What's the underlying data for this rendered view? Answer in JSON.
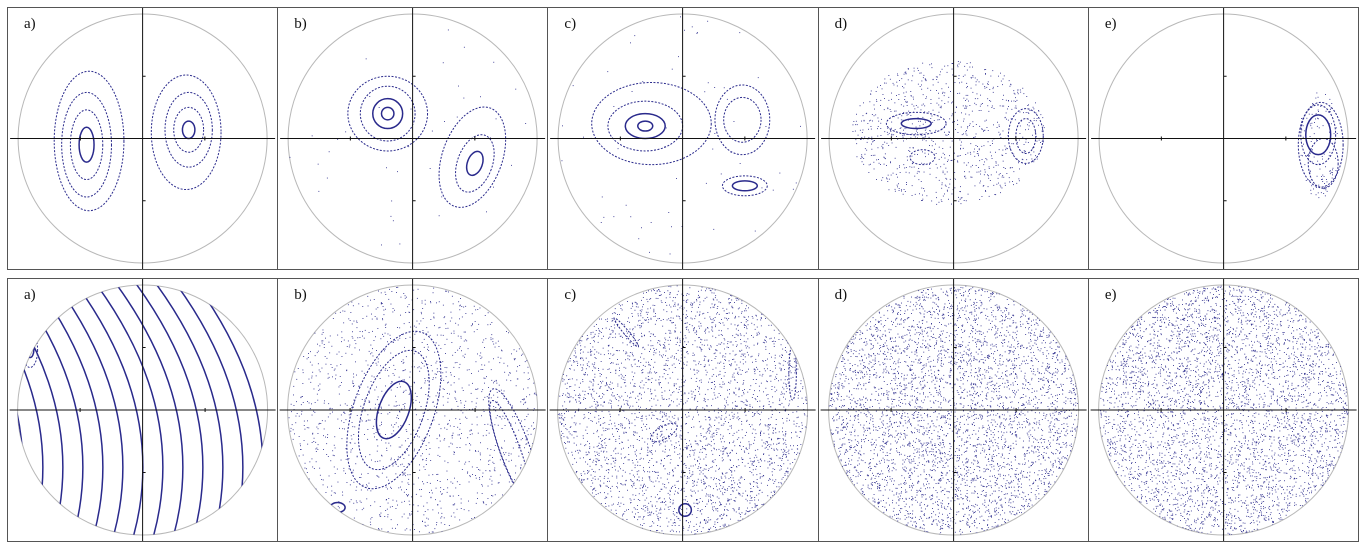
{
  "colors": {
    "orbit": "#2a2a8c",
    "circle": "#b8b8b8",
    "axis": "#111111",
    "frame": "#555555"
  },
  "rows": [
    {
      "name": "top",
      "panels": [
        {
          "label": "a)",
          "scatter": 0,
          "scatter_seed": 1,
          "curves": [
            {
              "cx": -0.45,
              "cy": -0.05,
              "rx": 0.06,
              "ry": 0.14,
              "rot": 0,
              "w": "thick"
            },
            {
              "cx": -0.45,
              "cy": -0.05,
              "rx": 0.13,
              "ry": 0.28,
              "rot": 0,
              "w": "thin"
            },
            {
              "cx": -0.45,
              "cy": -0.05,
              "rx": 0.2,
              "ry": 0.42,
              "rot": 0,
              "w": "thin"
            },
            {
              "cx": -0.43,
              "cy": -0.02,
              "rx": 0.28,
              "ry": 0.56,
              "rot": 0,
              "w": "thin"
            },
            {
              "cx": 0.37,
              "cy": 0.07,
              "rx": 0.05,
              "ry": 0.07,
              "rot": 0,
              "w": "thick"
            },
            {
              "cx": 0.37,
              "cy": 0.07,
              "rx": 0.12,
              "ry": 0.18,
              "rot": 0,
              "w": "thin"
            },
            {
              "cx": 0.37,
              "cy": 0.07,
              "rx": 0.19,
              "ry": 0.3,
              "rot": 0,
              "w": "thin"
            },
            {
              "cx": 0.35,
              "cy": 0.05,
              "rx": 0.28,
              "ry": 0.46,
              "rot": 0,
              "w": "thin"
            }
          ]
        },
        {
          "label": "b)",
          "scatter": 40,
          "scatter_seed": 2,
          "curves": [
            {
              "cx": -0.2,
              "cy": 0.2,
              "rx": 0.05,
              "ry": 0.05,
              "rot": 0,
              "w": "thick"
            },
            {
              "cx": -0.2,
              "cy": 0.2,
              "rx": 0.12,
              "ry": 0.12,
              "rot": 0,
              "w": "thick"
            },
            {
              "cx": -0.2,
              "cy": 0.2,
              "rx": 0.22,
              "ry": 0.22,
              "rot": 0,
              "w": "thin"
            },
            {
              "cx": -0.2,
              "cy": 0.2,
              "rx": 0.32,
              "ry": 0.3,
              "rot": 0,
              "w": "thin"
            },
            {
              "cx": 0.5,
              "cy": -0.2,
              "rx": 0.06,
              "ry": 0.1,
              "rot": -20,
              "w": "thick"
            },
            {
              "cx": 0.5,
              "cy": -0.2,
              "rx": 0.14,
              "ry": 0.24,
              "rot": -20,
              "w": "thin"
            },
            {
              "cx": 0.48,
              "cy": -0.15,
              "rx": 0.24,
              "ry": 0.42,
              "rot": -20,
              "w": "thin"
            }
          ]
        },
        {
          "label": "c)",
          "scatter": 60,
          "scatter_seed": 3,
          "curves": [
            {
              "cx": -0.3,
              "cy": 0.1,
              "rx": 0.06,
              "ry": 0.04,
              "rot": 0,
              "w": "thick"
            },
            {
              "cx": -0.3,
              "cy": 0.1,
              "rx": 0.16,
              "ry": 0.1,
              "rot": 0,
              "w": "thick"
            },
            {
              "cx": -0.3,
              "cy": 0.1,
              "rx": 0.3,
              "ry": 0.2,
              "rot": 0,
              "w": "thin"
            },
            {
              "cx": -0.25,
              "cy": 0.12,
              "rx": 0.48,
              "ry": 0.33,
              "rot": 0,
              "w": "thin"
            },
            {
              "cx": 0.48,
              "cy": 0.15,
              "rx": 0.15,
              "ry": 0.18,
              "rot": 0,
              "w": "thin"
            },
            {
              "cx": 0.48,
              "cy": 0.15,
              "rx": 0.22,
              "ry": 0.28,
              "rot": 0,
              "w": "thin"
            },
            {
              "cx": 0.5,
              "cy": -0.38,
              "rx": 0.1,
              "ry": 0.04,
              "rot": 0,
              "w": "thick"
            },
            {
              "cx": 0.5,
              "cy": -0.38,
              "rx": 0.18,
              "ry": 0.08,
              "rot": 0,
              "w": "thin"
            }
          ]
        },
        {
          "label": "d)",
          "scatter": 900,
          "scatter_seed": 4,
          "scatter_rx": 0.78,
          "scatter_ry": 0.58,
          "scatter_cx": -0.05,
          "scatter_cy": 0.05,
          "curves": [
            {
              "cx": -0.3,
              "cy": 0.12,
              "rx": 0.12,
              "ry": 0.04,
              "rot": 0,
              "w": "thick"
            },
            {
              "cx": -0.3,
              "cy": 0.12,
              "rx": 0.24,
              "ry": 0.09,
              "rot": 0,
              "w": "thin"
            },
            {
              "cx": 0.58,
              "cy": 0.02,
              "rx": 0.08,
              "ry": 0.14,
              "rot": 0,
              "w": "thin"
            },
            {
              "cx": 0.58,
              "cy": 0.02,
              "rx": 0.14,
              "ry": 0.22,
              "rot": 0,
              "w": "thin"
            },
            {
              "cx": -0.25,
              "cy": -0.15,
              "rx": 0.1,
              "ry": 0.06,
              "rot": 0,
              "w": "thin"
            }
          ]
        },
        {
          "label": "e)",
          "scatter": 120,
          "scatter_seed": 5,
          "scatter_rx": 0.16,
          "scatter_ry": 0.45,
          "scatter_cx": 0.76,
          "scatter_cy": -0.05,
          "curves": [
            {
              "cx": 0.76,
              "cy": 0.03,
              "rx": 0.1,
              "ry": 0.16,
              "rot": 0,
              "w": "thick"
            },
            {
              "cx": 0.76,
              "cy": 0.03,
              "rx": 0.14,
              "ry": 0.24,
              "rot": 0,
              "w": "thin"
            },
            {
              "cx": 0.78,
              "cy": -0.05,
              "rx": 0.18,
              "ry": 0.34,
              "rot": 0,
              "w": "thin"
            },
            {
              "cx": 0.8,
              "cy": -0.2,
              "rx": 0.12,
              "ry": 0.2,
              "rot": 0,
              "w": "thin"
            }
          ]
        }
      ]
    },
    {
      "name": "bottom",
      "panels": [
        {
          "label": "a)",
          "scatter": 0,
          "scatter_seed": 6,
          "stripes": true,
          "curves": [
            {
              "cx": -0.9,
              "cy": 0.48,
              "rx": 0.03,
              "ry": 0.06,
              "rot": 0,
              "w": "thick"
            },
            {
              "cx": -0.9,
              "cy": 0.48,
              "rx": 0.06,
              "ry": 0.14,
              "rot": 0,
              "w": "thin"
            }
          ]
        },
        {
          "label": "b)",
          "scatter": 1400,
          "scatter_seed": 7,
          "curves": [
            {
              "cx": -0.15,
              "cy": 0.0,
              "rx": 0.12,
              "ry": 0.24,
              "rot": -20,
              "w": "thick"
            },
            {
              "cx": -0.15,
              "cy": 0.0,
              "rx": 0.24,
              "ry": 0.5,
              "rot": -20,
              "w": "thin"
            },
            {
              "cx": -0.15,
              "cy": 0.0,
              "rx": 0.32,
              "ry": 0.66,
              "rot": -20,
              "w": "thin"
            },
            {
              "cx": 0.78,
              "cy": -0.32,
              "rx": 0.08,
              "ry": 0.42,
              "rot": 20,
              "w": "thin"
            },
            {
              "cx": 0.82,
              "cy": -0.32,
              "rx": 0.12,
              "ry": 0.52,
              "rot": 20,
              "w": "thin"
            },
            {
              "cx": -0.6,
              "cy": -0.78,
              "rx": 0.06,
              "ry": 0.04,
              "rot": 0,
              "w": "thick"
            }
          ]
        },
        {
          "label": "c)",
          "scatter": 3200,
          "scatter_seed": 8,
          "curves": [
            {
              "cx": 0.02,
              "cy": -0.8,
              "rx": 0.05,
              "ry": 0.05,
              "rot": 0,
              "w": "thick"
            },
            {
              "cx": -0.15,
              "cy": -0.18,
              "rx": 0.12,
              "ry": 0.05,
              "rot": 30,
              "w": "thin"
            },
            {
              "cx": 0.88,
              "cy": 0.3,
              "rx": 0.03,
              "ry": 0.22,
              "rot": 0,
              "w": "thin"
            },
            {
              "cx": -0.45,
              "cy": 0.62,
              "rx": 0.02,
              "ry": 0.15,
              "rot": 40,
              "w": "thin"
            }
          ]
        },
        {
          "label": "d)",
          "scatter": 4200,
          "scatter_seed": 9,
          "curves": []
        },
        {
          "label": "e)",
          "scatter": 4200,
          "scatter_seed": 10,
          "curves": []
        }
      ]
    }
  ]
}
